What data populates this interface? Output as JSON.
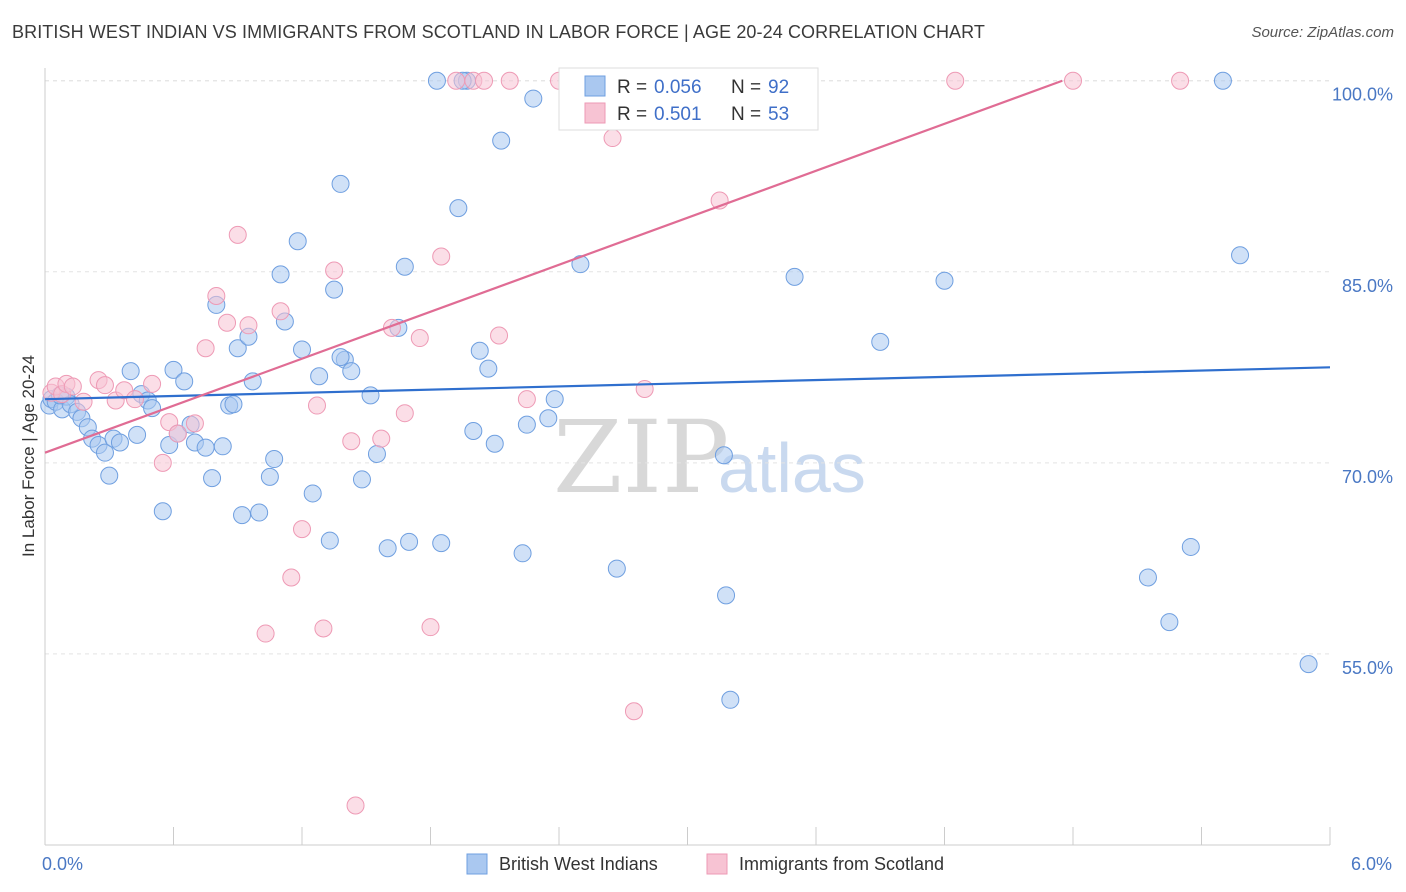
{
  "chart_data": {
    "type": "scatter",
    "title": "BRITISH WEST INDIAN VS IMMIGRANTS FROM SCOTLAND IN LABOR FORCE | AGE 20-24 CORRELATION CHART",
    "source": "Source: ZipAtlas.com",
    "ylabel": "In Labor Force | Age 20-24",
    "xlim": [
      0,
      6
    ],
    "ylim": [
      40,
      101
    ],
    "x_tick_labels": {
      "min": "0.0%",
      "max": "6.0%"
    },
    "y_ticks": [
      {
        "value": 55,
        "label": "55.0%"
      },
      {
        "value": 70,
        "label": "70.0%"
      },
      {
        "value": 85,
        "label": "85.0%"
      },
      {
        "value": 100,
        "label": "100.0%"
      }
    ],
    "watermark": {
      "zip": "ZIP",
      "atlas": "atlas"
    },
    "legend": {
      "r_label": "R =",
      "n_label": "N =",
      "entries": [
        {
          "r": "0.056",
          "n": "92"
        },
        {
          "r": "0.501",
          "n": "53"
        }
      ]
    },
    "series": [
      {
        "name": "British West Indians",
        "color": "#6f9fe0",
        "fill": "#aac8f0",
        "trendline": {
          "x": [
            0,
            6
          ],
          "y": [
            75,
            77.5
          ],
          "color": "#2f6fce"
        },
        "points": [
          [
            0.02,
            74.5
          ],
          [
            0.03,
            75
          ],
          [
            0.05,
            74.8
          ],
          [
            0.08,
            74.2
          ],
          [
            0.1,
            75.2
          ],
          [
            0.12,
            74.6
          ],
          [
            0.15,
            74.0
          ],
          [
            0.17,
            73.5
          ],
          [
            0.2,
            72.8
          ],
          [
            0.22,
            71.9
          ],
          [
            0.25,
            71.4
          ],
          [
            0.28,
            70.8
          ],
          [
            0.3,
            69.0
          ],
          [
            0.32,
            71.9
          ],
          [
            0.35,
            71.6
          ],
          [
            0.4,
            77.2
          ],
          [
            0.45,
            75.4
          ],
          [
            0.48,
            74.9
          ],
          [
            0.5,
            74.3
          ],
          [
            0.55,
            66.2
          ],
          [
            0.58,
            71.4
          ],
          [
            0.6,
            77.3
          ],
          [
            0.62,
            72.3
          ],
          [
            0.65,
            76.4
          ],
          [
            0.7,
            71.6
          ],
          [
            0.75,
            71.2
          ],
          [
            0.78,
            68.8
          ],
          [
            0.8,
            82.4
          ],
          [
            0.83,
            71.3
          ],
          [
            0.86,
            74.5
          ],
          [
            0.9,
            79.0
          ],
          [
            0.92,
            65.9
          ],
          [
            0.95,
            79.9
          ],
          [
            0.97,
            76.4
          ],
          [
            1.0,
            66.1
          ],
          [
            1.05,
            68.9
          ],
          [
            1.07,
            70.3
          ],
          [
            1.1,
            84.8
          ],
          [
            1.12,
            81.1
          ],
          [
            1.18,
            87.4
          ],
          [
            1.2,
            78.9
          ],
          [
            1.25,
            67.6
          ],
          [
            1.28,
            76.8
          ],
          [
            1.33,
            63.9
          ],
          [
            1.35,
            83.6
          ],
          [
            1.38,
            91.9
          ],
          [
            1.4,
            78.1
          ],
          [
            1.43,
            77.2
          ],
          [
            1.48,
            68.7
          ],
          [
            1.52,
            75.3
          ],
          [
            1.55,
            70.7
          ],
          [
            1.6,
            63.3
          ],
          [
            1.65,
            80.6
          ],
          [
            1.68,
            85.4
          ],
          [
            1.83,
            100
          ],
          [
            1.85,
            63.7
          ],
          [
            1.93,
            90
          ],
          [
            1.97,
            100
          ],
          [
            2.0,
            72.5
          ],
          [
            2.03,
            78.8
          ],
          [
            2.07,
            77.4
          ],
          [
            2.1,
            71.5
          ],
          [
            2.13,
            95.3
          ],
          [
            2.23,
            62.9
          ],
          [
            2.25,
            73.0
          ],
          [
            2.28,
            98.6
          ],
          [
            2.35,
            73.5
          ],
          [
            2.38,
            75.0
          ],
          [
            2.5,
            85.6
          ],
          [
            2.55,
            100
          ],
          [
            2.67,
            61.7
          ],
          [
            2.83,
            100
          ],
          [
            3.17,
            70.6
          ],
          [
            3.18,
            59.6
          ],
          [
            3.5,
            84.6
          ],
          [
            3.9,
            79.5
          ],
          [
            4.2,
            84.3
          ],
          [
            5.15,
            61.0
          ],
          [
            5.25,
            57.5
          ],
          [
            5.35,
            63.4
          ],
          [
            5.5,
            100
          ],
          [
            5.58,
            86.3
          ],
          [
            5.9,
            54.2
          ],
          [
            3.2,
            51.4
          ],
          [
            1.38,
            78.3
          ],
          [
            0.88,
            74.6
          ],
          [
            0.68,
            73.0
          ],
          [
            0.43,
            72.2
          ],
          [
            1.7,
            63.8
          ],
          [
            2.7,
            100
          ],
          [
            1.95,
            100
          ],
          [
            0.07,
            75.3
          ]
        ]
      },
      {
        "name": "Immigrants from Scotland",
        "color": "#ee9ab5",
        "fill": "#f7c3d3",
        "trendline": {
          "x": [
            0,
            4.75
          ],
          "y": [
            70.8,
            100
          ],
          "color": "#e06c94"
        },
        "points": [
          [
            0.03,
            75.5
          ],
          [
            0.05,
            76.0
          ],
          [
            0.08,
            75.4
          ],
          [
            0.1,
            76.2
          ],
          [
            0.13,
            76.0
          ],
          [
            0.18,
            74.8
          ],
          [
            0.25,
            76.5
          ],
          [
            0.28,
            76.1
          ],
          [
            0.33,
            74.9
          ],
          [
            0.37,
            75.7
          ],
          [
            0.42,
            75.0
          ],
          [
            0.5,
            76.2
          ],
          [
            0.55,
            70.0
          ],
          [
            0.58,
            73.2
          ],
          [
            0.62,
            72.3
          ],
          [
            0.7,
            73.1
          ],
          [
            0.75,
            79.0
          ],
          [
            0.8,
            83.1
          ],
          [
            0.85,
            81.0
          ],
          [
            0.9,
            87.9
          ],
          [
            0.95,
            80.8
          ],
          [
            1.03,
            56.6
          ],
          [
            1.1,
            81.9
          ],
          [
            1.15,
            61.0
          ],
          [
            1.2,
            64.8
          ],
          [
            1.27,
            74.5
          ],
          [
            1.3,
            57.0
          ],
          [
            1.35,
            85.1
          ],
          [
            1.43,
            71.7
          ],
          [
            1.45,
            43.1
          ],
          [
            1.57,
            71.9
          ],
          [
            1.62,
            80.6
          ],
          [
            1.68,
            73.9
          ],
          [
            1.75,
            79.8
          ],
          [
            1.8,
            57.1
          ],
          [
            1.85,
            86.2
          ],
          [
            1.92,
            100
          ],
          [
            2.0,
            100
          ],
          [
            2.05,
            100
          ],
          [
            2.17,
            100
          ],
          [
            2.25,
            75.0
          ],
          [
            2.4,
            100
          ],
          [
            2.45,
            100
          ],
          [
            2.58,
            100
          ],
          [
            2.65,
            95.5
          ],
          [
            2.75,
            50.5
          ],
          [
            2.8,
            75.8
          ],
          [
            3.15,
            90.6
          ],
          [
            3.55,
            100
          ],
          [
            4.25,
            100
          ],
          [
            4.8,
            100
          ],
          [
            5.3,
            100
          ],
          [
            2.12,
            80.0
          ]
        ]
      }
    ]
  }
}
